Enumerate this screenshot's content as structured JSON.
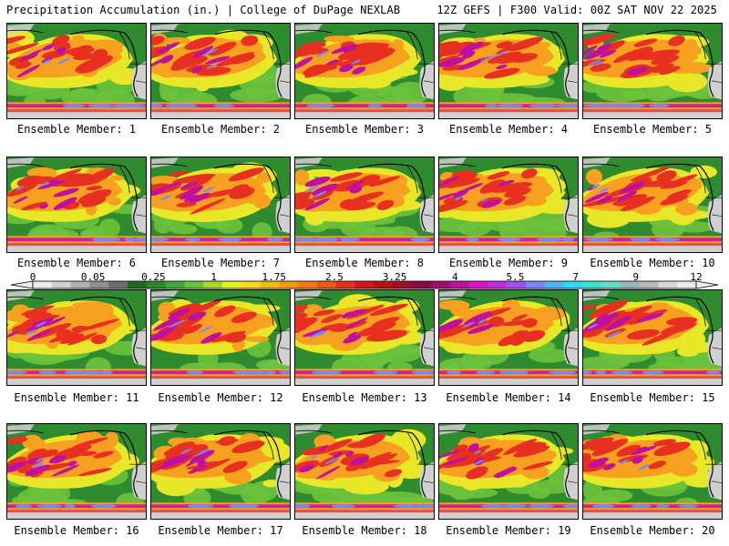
{
  "header": {
    "left_title": "Precipitation Accumulation (in.) | College of DuPage NEXLAB",
    "right_title": "12Z GEFS | F300 Valid: 00Z SAT NOV 22 2025"
  },
  "panel_label_prefix": "Ensemble Member: ",
  "members": [
    1,
    2,
    3,
    4,
    5,
    6,
    7,
    8,
    9,
    10,
    11,
    12,
    13,
    14,
    15,
    16,
    17,
    18,
    19,
    20
  ],
  "colorbar": {
    "ticks": [
      "0",
      "0.05",
      "0.25",
      "1",
      "1.75",
      "2.5",
      "3.25",
      "4",
      "5.5",
      "7",
      "9",
      "12"
    ],
    "colors": [
      "#ececec",
      "#d0d0d0",
      "#b0b0b0",
      "#909090",
      "#6e6e6e",
      "#1e6b1e",
      "#2a8a2a",
      "#3fa83f",
      "#6ac43a",
      "#a6d82e",
      "#e8f02a",
      "#f8d820",
      "#f8b818",
      "#f89818",
      "#f87818",
      "#f05818",
      "#e83020",
      "#d01818",
      "#b81018",
      "#a00c28",
      "#880a40",
      "#a00a70",
      "#c010a0",
      "#e010c8",
      "#c828e0",
      "#a050f0",
      "#7888f8",
      "#50b0f8",
      "#30d8f0",
      "#40e0d0",
      "#68d8c8",
      "#98b8b8",
      "#b8b8b8",
      "#d8d8d8",
      "#ececec"
    ]
  },
  "map_colors": {
    "dry": "#2e8b2e",
    "light": "#6cc23c",
    "moderate": "#e8e828",
    "heavy": "#f8a020",
    "very_heavy": "#e83020",
    "extreme": "#c010a0",
    "max": "#7888f8",
    "snow": "#d0d0d0"
  }
}
